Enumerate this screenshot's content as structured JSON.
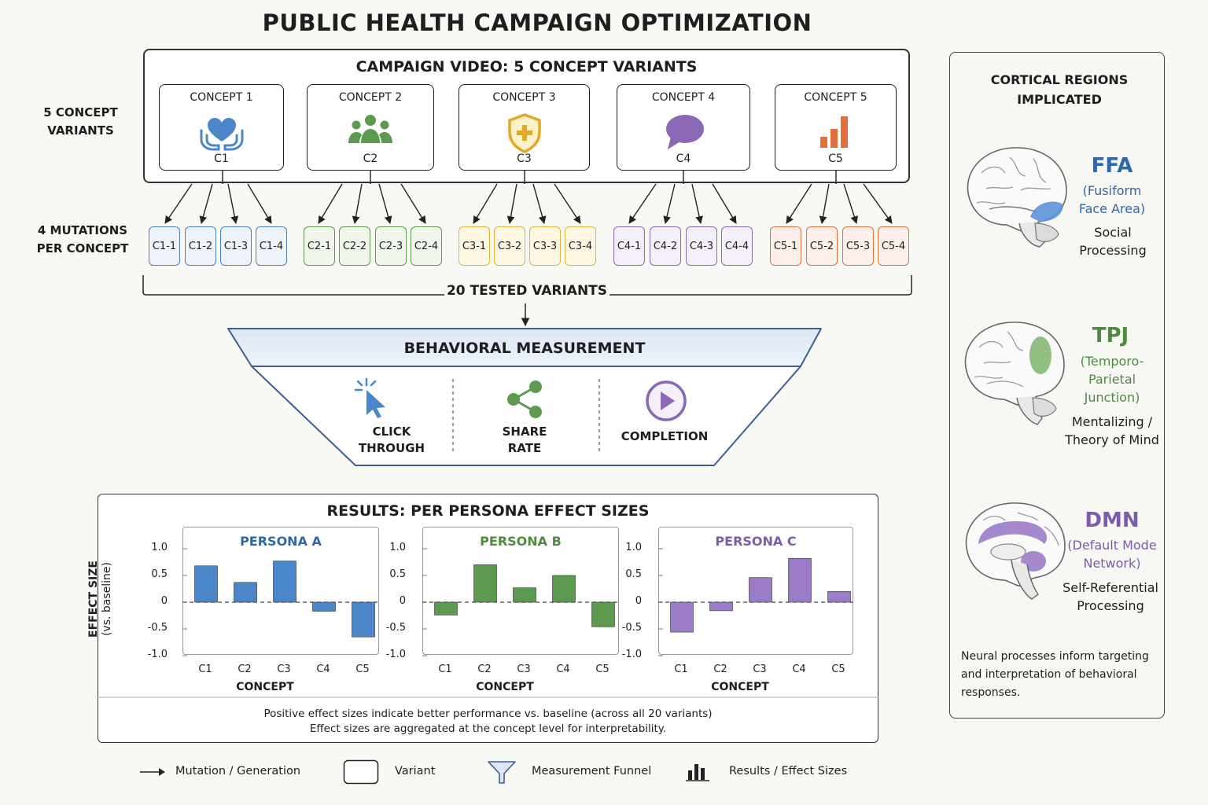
{
  "title": "PUBLIC HEALTH CAMPAIGN OPTIMIZATION",
  "campaign": {
    "title": "CAMPAIGN VIDEO: 5 CONCEPT VARIANTS",
    "side_label_line1": "5 CONCEPT",
    "side_label_line2": "VARIANTS",
    "concepts": [
      {
        "name": "CONCEPT 1",
        "code": "C1",
        "icon": "heart-hands-icon",
        "color": "#4a7fc1",
        "fill": "#eef3fa"
      },
      {
        "name": "CONCEPT 2",
        "code": "C2",
        "icon": "people-group-icon",
        "color": "#5e9a4e",
        "fill": "#f1f6ec"
      },
      {
        "name": "CONCEPT 3",
        "code": "C3",
        "icon": "shield-plus-icon",
        "color": "#e0b53a",
        "fill": "#fdf7e4"
      },
      {
        "name": "CONCEPT 4",
        "code": "C4",
        "icon": "speech-bubble-icon",
        "color": "#8a68b5",
        "fill": "#f4eff9"
      },
      {
        "name": "CONCEPT 5",
        "code": "C5",
        "icon": "bar-chart-icon",
        "color": "#e2703b",
        "fill": "#fdf0ea"
      }
    ]
  },
  "mutations": {
    "side_label_line1": "4 MUTATIONS",
    "side_label_line2": "PER CONCEPT",
    "groups": [
      [
        "C1-1",
        "C1-2",
        "C1-3",
        "C1-4"
      ],
      [
        "C2-1",
        "C2-2",
        "C2-3",
        "C2-4"
      ],
      [
        "C3-1",
        "C3-2",
        "C3-3",
        "C3-4"
      ],
      [
        "C4-1",
        "C4-2",
        "C4-3",
        "C4-4"
      ],
      [
        "C5-1",
        "C5-2",
        "C5-3",
        "C5-4"
      ]
    ],
    "total_label": "20 TESTED VARIANTS"
  },
  "funnel": {
    "title": "BEHAVIORAL MEASUREMENT",
    "metrics": [
      {
        "line1": "CLICK",
        "line2": "THROUGH",
        "icon": "cursor-click-icon"
      },
      {
        "line1": "SHARE",
        "line2": "RATE",
        "icon": "share-icon"
      },
      {
        "line1": "COMPLETION",
        "line2": "",
        "icon": "play-button-icon"
      }
    ]
  },
  "results": {
    "title": "RESULTS: PER PERSONA EFFECT SIZES",
    "ylabel_line1": "EFFECT SIZE",
    "ylabel_line2": "(vs. baseline)",
    "xlabel": "CONCEPT",
    "yticks": [
      "1.0",
      "0.5",
      "0",
      "-0.5",
      "-1.0"
    ],
    "note_line1": "Positive effect sizes indicate better performance vs. baseline (across all 20 variants)",
    "note_line2": "Effect sizes are aggregated at the concept level for interpretability."
  },
  "chart_data": [
    {
      "type": "bar",
      "title": "PERSONA A",
      "categories": [
        "C1",
        "C2",
        "C3",
        "C4",
        "C5"
      ],
      "values": [
        0.68,
        0.37,
        0.77,
        -0.17,
        -0.65
      ],
      "xlabel": "CONCEPT",
      "ylabel": "EFFECT SIZE (vs. baseline)",
      "ylim": [
        -1.0,
        1.0
      ],
      "color": "#4a86c8"
    },
    {
      "type": "bar",
      "title": "PERSONA B",
      "categories": [
        "C1",
        "C2",
        "C3",
        "C4",
        "C5"
      ],
      "values": [
        -0.24,
        0.7,
        0.27,
        0.5,
        -0.46
      ],
      "xlabel": "CONCEPT",
      "ylabel": "EFFECT SIZE (vs. baseline)",
      "ylim": [
        -1.0,
        1.0
      ],
      "color": "#5d9a4f"
    },
    {
      "type": "bar",
      "title": "PERSONA C",
      "categories": [
        "C1",
        "C2",
        "C3",
        "C4",
        "C5"
      ],
      "values": [
        -0.56,
        -0.16,
        0.46,
        0.82,
        0.2
      ],
      "xlabel": "CONCEPT",
      "ylabel": "EFFECT SIZE (vs. baseline)",
      "ylim": [
        -1.0,
        1.0
      ],
      "color": "#9b7cc6"
    }
  ],
  "cortical": {
    "title_line1": "CORTICAL REGIONS",
    "title_line2": "IMPLICATED",
    "regions": [
      {
        "abbr": "FFA",
        "full_line1": "(Fusiform",
        "full_line2": "Face Area)",
        "full_line3": "",
        "func_line1": "Social",
        "func_line2": "Processing",
        "color": "#2f67a8",
        "highlight": "#5b93d6"
      },
      {
        "abbr": "TPJ",
        "full_line1": "(Temporo-",
        "full_line2": "Parietal",
        "full_line3": "Junction)",
        "func_line1": "Mentalizing /",
        "func_line2": "Theory of Mind",
        "color": "#4f8a43",
        "highlight": "#86b874"
      },
      {
        "abbr": "DMN",
        "full_line1": "(Default Mode",
        "full_line2": "Network)",
        "full_line3": "",
        "func_line1": "Self-Referential",
        "func_line2": "Processing",
        "color": "#7d5aae",
        "highlight": "#9b7cc6"
      }
    ],
    "note": "Neural processes inform targeting and interpretation of behavioral responses."
  },
  "legend": [
    {
      "label": "Mutation / Generation",
      "icon": "arrow-icon"
    },
    {
      "label": "Variant",
      "icon": "variant-box-icon"
    },
    {
      "label": "Measurement Funnel",
      "icon": "funnel-icon"
    },
    {
      "label": "Results / Effect Sizes",
      "icon": "bar-chart-icon"
    }
  ]
}
